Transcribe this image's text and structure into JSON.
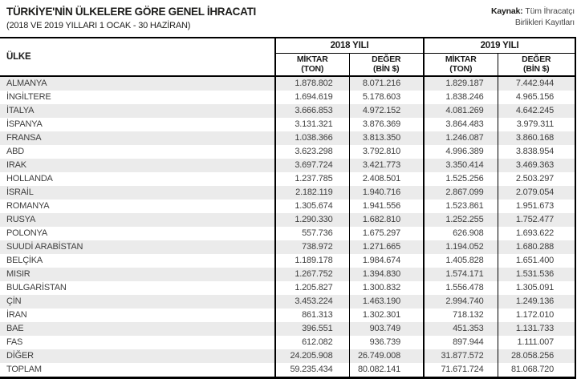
{
  "header": {
    "title": "TÜRKİYE'NİN ÜLKELERE GÖRE GENEL İHRACATI",
    "subtitle": "(2018 VE 2019 YILLARI 1 OCAK - 30 HAZİRAN)",
    "source_label": "Kaynak:",
    "source_rest": "Tüm İhracatçı",
    "source_line2": "Birlikleri Kayıtları"
  },
  "table": {
    "country_header": "ÜLKE",
    "year_2018": "2018 YILI",
    "year_2019": "2019 YILI",
    "subcols": {
      "qty_line1": "MİKTAR",
      "qty_line2": "(TON)",
      "val_line1": "DEĞER",
      "val_line2": "(BİN $)"
    }
  },
  "colors": {
    "stripe": "#ebebeb",
    "border": "#000000",
    "title_text": "#1d1d1b",
    "body_text": "#3e3e3e"
  },
  "chart_data": {
    "type": "table",
    "title": "TÜRKİYE'NİN ÜLKELERE GÖRE GENEL İHRACATI",
    "subtitle": "(2018 VE 2019 YILLARI 1 OCAK - 30 HAZİRAN)",
    "source": "Kaynak: Tüm İhracatçı Birlikleri Kayıtları",
    "columns": [
      "ÜLKE",
      "2018 MİKTAR (TON)",
      "2018 DEĞER (BİN $)",
      "2019 MİKTAR (TON)",
      "2019 DEĞER (BİN $)"
    ],
    "rows": [
      [
        "ALMANYA",
        "1.878.802",
        "8.071.216",
        "1.829.187",
        "7.442.944"
      ],
      [
        "İNGİLTERE",
        "1.694.619",
        "5.178.603",
        "1.838.246",
        "4.965.156"
      ],
      [
        "İTALYA",
        "3.666.853",
        "4.972.152",
        "4.081.269",
        "4.642.245"
      ],
      [
        "İSPANYA",
        "3.131.321",
        "3.876.369",
        "3.864.483",
        "3.979.311"
      ],
      [
        "FRANSA",
        "1.038.366",
        "3.813.350",
        "1.246.087",
        "3.860.168"
      ],
      [
        "ABD",
        "3.623.298",
        "3.792.810",
        "4.996.389",
        "3.838.954"
      ],
      [
        "IRAK",
        "3.697.724",
        "3.421.773",
        "3.350.414",
        "3.469.363"
      ],
      [
        "HOLLANDA",
        "1.237.785",
        "2.408.501",
        "1.525.256",
        "2.503.297"
      ],
      [
        "İSRAİL",
        "2.182.119",
        "1.940.716",
        "2.867.099",
        "2.079.054"
      ],
      [
        "ROMANYA",
        "1.305.674",
        "1.941.556",
        "1.523.861",
        "1.951.673"
      ],
      [
        "RUSYA",
        "1.290.330",
        "1.682.810",
        "1.252.255",
        "1.752.477"
      ],
      [
        "POLONYA",
        "557.736",
        "1.675.297",
        "626.908",
        "1.693.622"
      ],
      [
        "SUUDİ ARABİSTAN",
        "738.972",
        "1.271.665",
        "1.194.052",
        "1.680.288"
      ],
      [
        "BELÇİKA",
        "1.189.178",
        "1.984.674",
        "1.405.828",
        "1.651.400"
      ],
      [
        "MISIR",
        "1.267.752",
        "1.394.830",
        "1.574.171",
        "1.531.536"
      ],
      [
        "BULGARİSTAN",
        "1.205.827",
        "1.300.832",
        "1.556.478",
        "1.305.091"
      ],
      [
        "ÇİN",
        "3.453.224",
        "1.463.190",
        "2.994.740",
        "1.249.136"
      ],
      [
        "İRAN",
        "861.313",
        "1.302.301",
        "718.132",
        "1.172.010"
      ],
      [
        "BAE",
        "396.551",
        "903.749",
        "451.353",
        "1.131.733"
      ],
      [
        "FAS",
        "612.082",
        "936.739",
        "897.944",
        "1.111.007"
      ],
      [
        "DİĞER",
        "24.205.908",
        "26.749.008",
        "31.877.572",
        "28.058.256"
      ],
      [
        "TOPLAM",
        "59.235.434",
        "80.082.141",
        "71.671.724",
        "81.068.720"
      ]
    ]
  }
}
